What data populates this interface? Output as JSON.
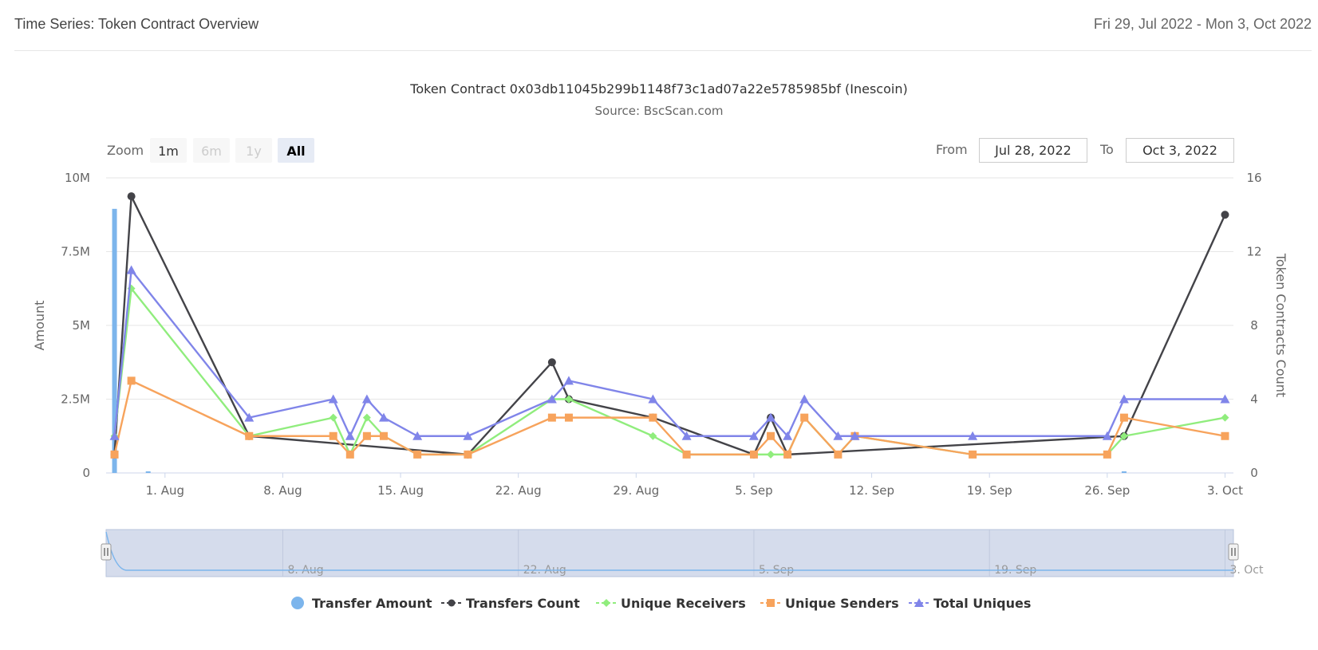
{
  "header": {
    "title": "Time Series: Token Contract Overview",
    "date_range": "Fri 29, Jul 2022 - Mon 3, Oct 2022"
  },
  "zoom": {
    "label": "Zoom",
    "buttons": [
      {
        "label": "1m",
        "state": "enabled"
      },
      {
        "label": "6m",
        "state": "disabled"
      },
      {
        "label": "1y",
        "state": "disabled"
      },
      {
        "label": "All",
        "state": "selected"
      }
    ]
  },
  "range_selector": {
    "from_label": "From",
    "from_value": "Jul 28, 2022",
    "to_label": "To",
    "to_value": "Oct 3, 2022"
  },
  "colors": {
    "transfer_amount": "#7cb5ec",
    "transfers_count": "#434348",
    "unique_receivers": "#90ed7d",
    "unique_senders": "#f7a35c",
    "total_uniques": "#8085e9"
  },
  "chart_data": {
    "type": "line",
    "title": "Token Contract 0x03db11045b299b1148f73c1ad07a22e5785985bf (Inescoin)",
    "subtitle": "Source: BscScan.com",
    "x_axis": {
      "type": "datetime",
      "range": [
        "2022-07-29",
        "2022-10-03"
      ],
      "tick_labels": [
        "1. Aug",
        "8. Aug",
        "15. Aug",
        "22. Aug",
        "29. Aug",
        "5. Sep",
        "12. Sep",
        "19. Sep",
        "26. Sep",
        "3. Oct"
      ]
    },
    "y_axis_left": {
      "label": "Amount",
      "range": [
        0,
        10000000
      ],
      "tick_labels": [
        "0",
        "2.5M",
        "5M",
        "7.5M",
        "10M"
      ]
    },
    "y_axis_right": {
      "label": "Token Contracts Count",
      "range": [
        0,
        16
      ],
      "tick_labels": [
        "0",
        "4",
        "8",
        "12",
        "16"
      ]
    },
    "grid": true,
    "legend_position": "bottom",
    "series": [
      {
        "name": "Transfer Amount",
        "type": "column",
        "axis": "left",
        "points": [
          {
            "date": "2022-07-29",
            "value": 8950000
          },
          {
            "date": "2022-07-31",
            "value": 30000
          },
          {
            "date": "2022-09-27",
            "value": 40000
          }
        ]
      },
      {
        "name": "Transfers Count",
        "type": "line",
        "axis": "right",
        "points": [
          {
            "date": "2022-07-29",
            "value": 1
          },
          {
            "date": "2022-07-30",
            "value": 15
          },
          {
            "date": "2022-08-06",
            "value": 2
          },
          {
            "date": "2022-08-19",
            "value": 1
          },
          {
            "date": "2022-08-24",
            "value": 6
          },
          {
            "date": "2022-08-25",
            "value": 4
          },
          {
            "date": "2022-08-30",
            "value": 3
          },
          {
            "date": "2022-09-05",
            "value": 1
          },
          {
            "date": "2022-09-06",
            "value": 3
          },
          {
            "date": "2022-09-07",
            "value": 1
          },
          {
            "date": "2022-09-27",
            "value": 2
          },
          {
            "date": "2022-10-03",
            "value": 14
          }
        ]
      },
      {
        "name": "Unique Receivers",
        "type": "line",
        "axis": "right",
        "points": [
          {
            "date": "2022-07-29",
            "value": 2
          },
          {
            "date": "2022-07-30",
            "value": 10
          },
          {
            "date": "2022-08-06",
            "value": 2
          },
          {
            "date": "2022-08-11",
            "value": 3
          },
          {
            "date": "2022-08-12",
            "value": 1
          },
          {
            "date": "2022-08-13",
            "value": 3
          },
          {
            "date": "2022-08-14",
            "value": 2
          },
          {
            "date": "2022-08-16",
            "value": 1
          },
          {
            "date": "2022-08-19",
            "value": 1
          },
          {
            "date": "2022-08-24",
            "value": 4
          },
          {
            "date": "2022-08-25",
            "value": 4
          },
          {
            "date": "2022-08-30",
            "value": 2
          },
          {
            "date": "2022-09-01",
            "value": 1
          },
          {
            "date": "2022-09-05",
            "value": 1
          },
          {
            "date": "2022-09-06",
            "value": 1
          },
          {
            "date": "2022-09-07",
            "value": 1
          },
          {
            "date": "2022-09-08",
            "value": 3
          },
          {
            "date": "2022-09-10",
            "value": 1
          },
          {
            "date": "2022-09-11",
            "value": 2
          },
          {
            "date": "2022-09-18",
            "value": 1
          },
          {
            "date": "2022-09-26",
            "value": 1
          },
          {
            "date": "2022-09-27",
            "value": 2
          },
          {
            "date": "2022-10-03",
            "value": 3
          }
        ]
      },
      {
        "name": "Unique Senders",
        "type": "line",
        "axis": "right",
        "points": [
          {
            "date": "2022-07-29",
            "value": 1
          },
          {
            "date": "2022-07-30",
            "value": 5
          },
          {
            "date": "2022-08-06",
            "value": 2
          },
          {
            "date": "2022-08-11",
            "value": 2
          },
          {
            "date": "2022-08-12",
            "value": 1
          },
          {
            "date": "2022-08-13",
            "value": 2
          },
          {
            "date": "2022-08-14",
            "value": 2
          },
          {
            "date": "2022-08-16",
            "value": 1
          },
          {
            "date": "2022-08-19",
            "value": 1
          },
          {
            "date": "2022-08-24",
            "value": 3
          },
          {
            "date": "2022-08-25",
            "value": 3
          },
          {
            "date": "2022-08-30",
            "value": 3
          },
          {
            "date": "2022-09-01",
            "value": 1
          },
          {
            "date": "2022-09-05",
            "value": 1
          },
          {
            "date": "2022-09-06",
            "value": 2
          },
          {
            "date": "2022-09-07",
            "value": 1
          },
          {
            "date": "2022-09-08",
            "value": 3
          },
          {
            "date": "2022-09-10",
            "value": 1
          },
          {
            "date": "2022-09-11",
            "value": 2
          },
          {
            "date": "2022-09-18",
            "value": 1
          },
          {
            "date": "2022-09-26",
            "value": 1
          },
          {
            "date": "2022-09-27",
            "value": 3
          },
          {
            "date": "2022-10-03",
            "value": 2
          }
        ]
      },
      {
        "name": "Total Uniques",
        "type": "line",
        "axis": "right",
        "points": [
          {
            "date": "2022-07-29",
            "value": 2
          },
          {
            "date": "2022-07-30",
            "value": 11
          },
          {
            "date": "2022-08-06",
            "value": 3
          },
          {
            "date": "2022-08-11",
            "value": 4
          },
          {
            "date": "2022-08-12",
            "value": 2
          },
          {
            "date": "2022-08-13",
            "value": 4
          },
          {
            "date": "2022-08-14",
            "value": 3
          },
          {
            "date": "2022-08-16",
            "value": 2
          },
          {
            "date": "2022-08-19",
            "value": 2
          },
          {
            "date": "2022-08-24",
            "value": 4
          },
          {
            "date": "2022-08-25",
            "value": 5
          },
          {
            "date": "2022-08-30",
            "value": 4
          },
          {
            "date": "2022-09-01",
            "value": 2
          },
          {
            "date": "2022-09-05",
            "value": 2
          },
          {
            "date": "2022-09-06",
            "value": 3
          },
          {
            "date": "2022-09-07",
            "value": 2
          },
          {
            "date": "2022-09-08",
            "value": 4
          },
          {
            "date": "2022-09-10",
            "value": 2
          },
          {
            "date": "2022-09-11",
            "value": 2
          },
          {
            "date": "2022-09-18",
            "value": 2
          },
          {
            "date": "2022-09-26",
            "value": 2
          },
          {
            "date": "2022-09-27",
            "value": 4
          },
          {
            "date": "2022-10-03",
            "value": 4
          }
        ]
      }
    ]
  },
  "navigator": {
    "tick_labels": [
      "8. Aug",
      "22. Aug",
      "5. Sep",
      "19. Sep",
      "3. Oct"
    ]
  }
}
